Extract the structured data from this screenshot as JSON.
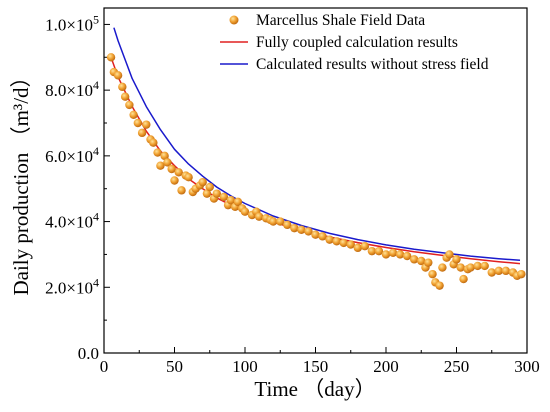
{
  "chart_data": {
    "type": "line",
    "xlabel": "Time （day）",
    "ylabel": "Daily production （m³/d）",
    "xlim": [
      0,
      300
    ],
    "ylim": [
      0,
      105000
    ],
    "x_ticks": [
      0,
      50,
      100,
      150,
      200,
      250,
      300
    ],
    "x_tick_labels": [
      "0",
      "50",
      "100",
      "150",
      "200",
      "250",
      "300"
    ],
    "y_ticks": [
      0,
      20000,
      40000,
      60000,
      80000,
      100000
    ],
    "y_tick_labels": [
      {
        "mant": "0.0",
        "exp": ""
      },
      {
        "mant": "2.0×10",
        "exp": "4"
      },
      {
        "mant": "4.0×10",
        "exp": "4"
      },
      {
        "mant": "6.0×10",
        "exp": "4"
      },
      {
        "mant": "8.0×10",
        "exp": "4"
      },
      {
        "mant": "1.0×10",
        "exp": "5"
      }
    ],
    "legend_position": "top-right",
    "colors": {
      "field_data": "#f0a030",
      "coupled": "#e02020",
      "no_stress": "#1a1acc"
    },
    "series": [
      {
        "name": "Marcellus Shale Field Data",
        "kind": "scatter",
        "x": [
          5,
          7,
          10,
          13,
          15,
          18,
          21,
          24,
          27,
          30,
          33,
          35,
          38,
          40,
          43,
          45,
          48,
          50,
          53,
          55,
          58,
          60,
          63,
          65,
          68,
          70,
          73,
          75,
          78,
          80,
          85,
          88,
          90,
          93,
          95,
          98,
          100,
          105,
          108,
          110,
          115,
          118,
          120,
          125,
          130,
          135,
          140,
          145,
          150,
          155,
          160,
          165,
          170,
          175,
          180,
          185,
          190,
          195,
          200,
          205,
          210,
          215,
          220,
          225,
          228,
          230,
          233,
          235,
          238,
          240,
          243,
          245,
          248,
          250,
          253,
          255,
          258,
          260,
          265,
          270,
          275,
          280,
          285,
          290,
          293,
          296
        ],
        "y": [
          90000,
          85500,
          84500,
          81000,
          78000,
          75500,
          72500,
          70000,
          67000,
          69500,
          65000,
          64000,
          61000,
          57000,
          60000,
          58000,
          56000,
          52500,
          55000,
          49500,
          54000,
          53500,
          49000,
          50000,
          51000,
          52000,
          48500,
          50500,
          47000,
          48500,
          47500,
          45000,
          46500,
          44500,
          46000,
          44000,
          43000,
          42000,
          43000,
          41500,
          41000,
          40500,
          40000,
          40000,
          39000,
          38000,
          37500,
          37000,
          36000,
          35500,
          34500,
          34000,
          33500,
          33000,
          32000,
          32500,
          31000,
          31000,
          30000,
          30500,
          30000,
          29500,
          28500,
          28000,
          26000,
          27500,
          24000,
          21500,
          20500,
          26000,
          29000,
          30000,
          27000,
          28500,
          26000,
          22500,
          25500,
          26000,
          26500,
          26500,
          24500,
          25000,
          25000,
          24500,
          23500,
          24000
        ]
      },
      {
        "name": "Fully coupled calculation results",
        "kind": "line",
        "x": [
          5,
          10,
          20,
          30,
          40,
          50,
          60,
          70,
          80,
          90,
          100,
          120,
          140,
          160,
          180,
          200,
          220,
          240,
          260,
          280,
          295
        ],
        "y": [
          90000,
          84000,
          75000,
          67500,
          61500,
          57000,
          53000,
          50000,
          47200,
          45000,
          43000,
          39800,
          37300,
          35300,
          33600,
          32100,
          30800,
          29700,
          28700,
          27800,
          27200
        ]
      },
      {
        "name": "Calculated results without stress field",
        "kind": "line",
        "x": [
          7,
          10,
          20,
          30,
          40,
          50,
          60,
          70,
          80,
          90,
          100,
          120,
          140,
          160,
          180,
          200,
          220,
          240,
          260,
          280,
          295
        ],
        "y": [
          99000,
          95000,
          83500,
          75000,
          68000,
          62000,
          57500,
          53800,
          50500,
          47800,
          45500,
          41700,
          38800,
          36400,
          34500,
          32900,
          31600,
          30500,
          29500,
          28700,
          28200
        ]
      }
    ]
  }
}
